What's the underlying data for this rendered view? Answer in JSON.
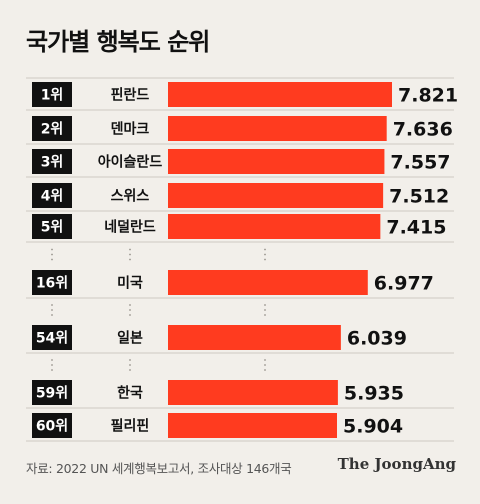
{
  "chart_data": {
    "type": "bar",
    "orientation": "horizontal",
    "title": "국가별 행복도 순위",
    "ranks": [
      "1위",
      "2위",
      "3위",
      "4위",
      "5위",
      "16위",
      "54위",
      "59위",
      "60위"
    ],
    "categories": [
      "핀란드",
      "덴마크",
      "아이슬란드",
      "스위스",
      "네덜란드",
      "미국",
      "일본",
      "한국",
      "필리핀"
    ],
    "values": [
      7.821,
      7.636,
      7.557,
      7.512,
      7.415,
      6.977,
      6.039,
      5.935,
      5.904
    ],
    "value_labels": [
      "7.821",
      "7.636",
      "7.557",
      "7.512",
      "7.415",
      "6.977",
      "6.039",
      "5.935",
      "5.904"
    ],
    "gaps_after": [
      4,
      5,
      6
    ],
    "bar_color": "#ff3b1f",
    "rank_box_color": "#111111"
  },
  "footer": {
    "source": "자료: 2022 UN 세계행복보고서, 조사대상 146개국",
    "brand": "The JoongAng"
  }
}
